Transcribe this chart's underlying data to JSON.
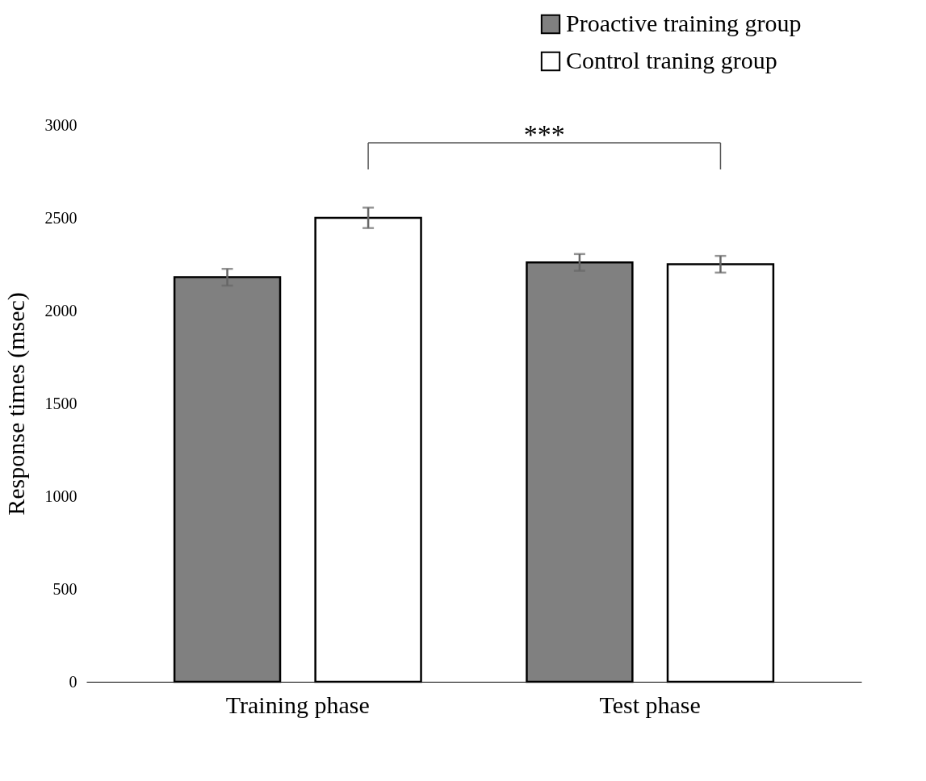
{
  "chart_data": {
    "type": "bar",
    "ylabel": "Response times (msec)",
    "categories": [
      "Training phase",
      "Test phase"
    ],
    "series": [
      {
        "name": "Proactive training group",
        "color": "#808080",
        "values": [
          2180,
          2260
        ],
        "errors": [
          45,
          45
        ]
      },
      {
        "name": "Control traning group",
        "color": "#ffffff",
        "values": [
          2500,
          2250
        ],
        "errors": [
          55,
          45
        ]
      }
    ],
    "ylim": [
      0,
      3000
    ],
    "yticks": [
      0,
      500,
      1000,
      1500,
      2000,
      2500,
      3000
    ],
    "annotations": [
      "***"
    ],
    "grid": false,
    "legend": "top right"
  }
}
